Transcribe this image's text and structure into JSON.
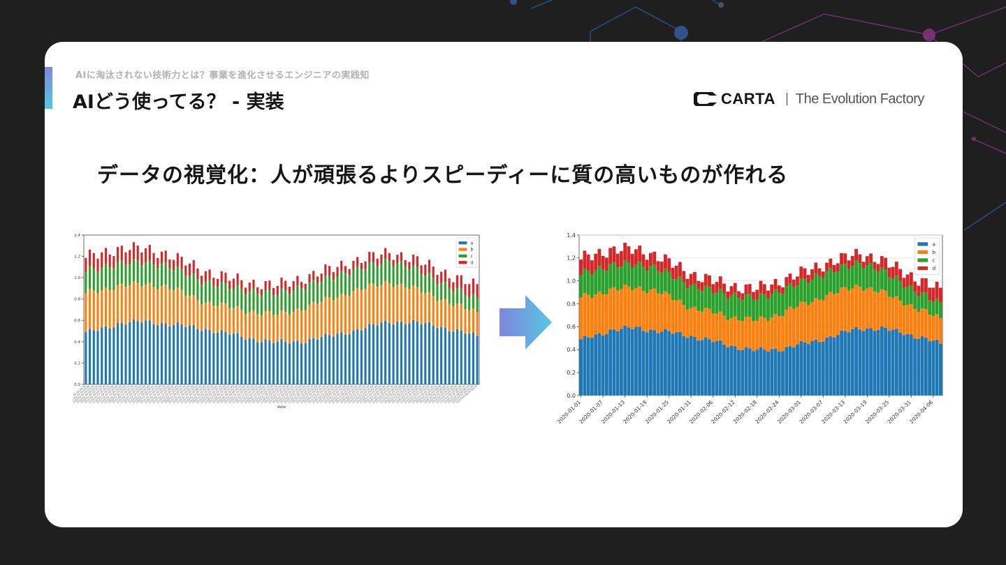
{
  "header": {
    "eyebrow": "AIに淘汰されない技術力とは？事業を進化させるエンジニアの実践知",
    "title": "AIどう使ってる？ - 実装"
  },
  "logo": {
    "wordmark": "CARTA",
    "tagline": "The Evolution Factory"
  },
  "headline": "データの視覚化：人が頑張るよりスピーディーに質の高いものが作れる",
  "colors": {
    "a": "#1f77b4",
    "b": "#ff7f0e",
    "c": "#2ca02c",
    "d": "#d62728",
    "accent_start": "#7f86df",
    "accent_end": "#55c8e0"
  },
  "chart_data": [
    {
      "type": "bar",
      "stacked": true,
      "title": "",
      "xlabel": "date",
      "ylabel": "",
      "ylim": [
        0,
        1.4
      ],
      "yticks": [
        "0.0",
        "0.2",
        "0.4",
        "0.6",
        "0.8",
        "1.0",
        "1.2",
        "1.4"
      ],
      "legend": [
        "a",
        "b",
        "c",
        "d"
      ],
      "legend_position": "top-right",
      "x_tick_label_format": "2020-01-01 00:00:00",
      "bars": 99,
      "series_ref": "shared_series"
    },
    {
      "type": "bar",
      "stacked": true,
      "title": "",
      "xlabel": "",
      "ylabel": "",
      "ylim": [
        0,
        1.4
      ],
      "yticks": [
        "0.0",
        "0.2",
        "0.4",
        "0.6",
        "0.8",
        "1.0",
        "1.2",
        "1.4"
      ],
      "legend": [
        "a",
        "b",
        "c",
        "d"
      ],
      "legend_position": "top-right",
      "grid": true,
      "xticks": [
        "2020-01-01",
        "2020-01-07",
        "2020-01-13",
        "2020-01-19",
        "2020-01-25",
        "2020-01-31",
        "2020-02-06",
        "2020-02-12",
        "2020-02-18",
        "2020-02-24",
        "2020-03-01",
        "2020-03-07",
        "2020-03-13",
        "2020-03-19",
        "2020-03-25",
        "2020-03-31",
        "2020-04-06"
      ],
      "bars": 99,
      "series_ref": "shared_series"
    }
  ],
  "shared_series": {
    "start_date": "2020-01-01",
    "days": 99,
    "a_keypoints": [
      [
        0,
        0.48
      ],
      [
        8,
        0.57
      ],
      [
        15,
        0.59
      ],
      [
        22,
        0.56
      ],
      [
        30,
        0.52
      ],
      [
        40,
        0.44
      ],
      [
        48,
        0.39
      ],
      [
        55,
        0.41
      ],
      [
        62,
        0.46
      ],
      [
        70,
        0.53
      ],
      [
        76,
        0.59
      ],
      [
        82,
        0.58
      ],
      [
        88,
        0.55
      ],
      [
        94,
        0.49
      ],
      [
        98,
        0.45
      ]
    ],
    "b_keypoints": [
      [
        0,
        0.37
      ],
      [
        10,
        0.35
      ],
      [
        20,
        0.35
      ],
      [
        30,
        0.25
      ],
      [
        40,
        0.25
      ],
      [
        48,
        0.26
      ],
      [
        56,
        0.32
      ],
      [
        66,
        0.37
      ],
      [
        76,
        0.37
      ],
      [
        84,
        0.3
      ],
      [
        92,
        0.24
      ],
      [
        98,
        0.22
      ]
    ],
    "c_keypoints": [
      [
        0,
        0.21
      ],
      [
        10,
        0.21
      ],
      [
        20,
        0.2
      ],
      [
        30,
        0.19
      ],
      [
        40,
        0.19
      ],
      [
        50,
        0.2
      ],
      [
        60,
        0.2
      ],
      [
        70,
        0.2
      ],
      [
        80,
        0.2
      ],
      [
        90,
        0.15
      ],
      [
        98,
        0.13
      ]
    ],
    "d_keypoints": [
      [
        0,
        0.13
      ],
      [
        10,
        0.14
      ],
      [
        20,
        0.11
      ],
      [
        30,
        0.1
      ],
      [
        40,
        0.08
      ],
      [
        50,
        0.08
      ],
      [
        60,
        0.08
      ],
      [
        70,
        0.08
      ],
      [
        80,
        0.08
      ],
      [
        90,
        0.11
      ],
      [
        98,
        0.12
      ]
    ]
  }
}
